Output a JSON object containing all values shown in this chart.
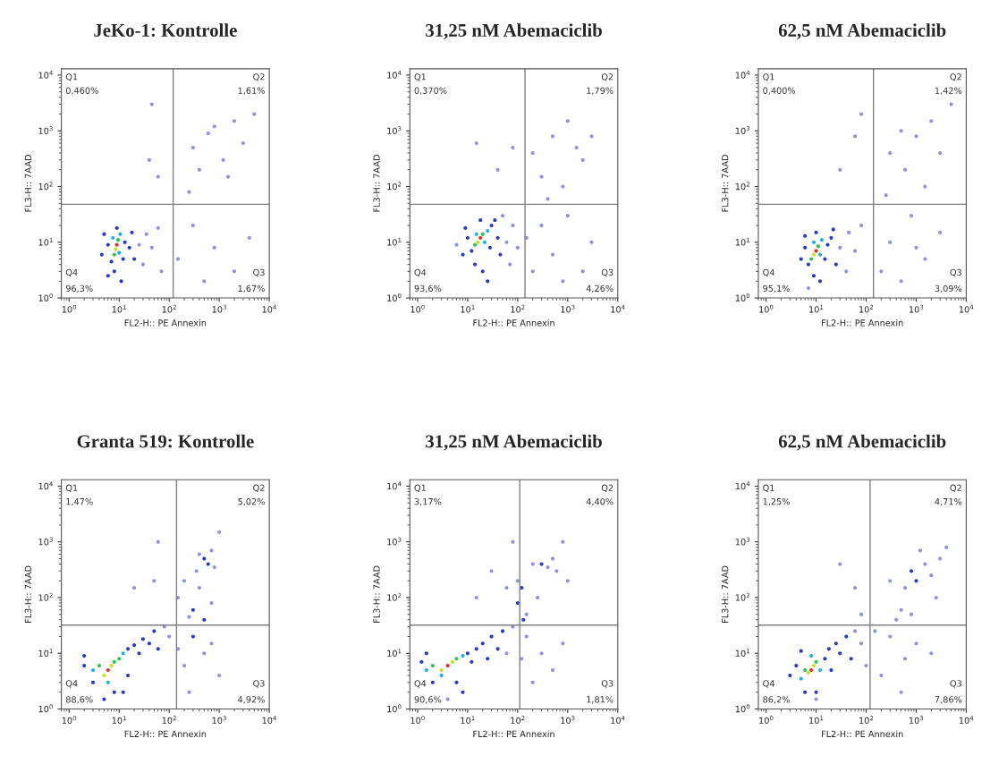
{
  "chart_data": [
    {
      "type": "scatter",
      "title": "JeKo-1: Kontrolle",
      "xlabel": "FL2-H:: PE Annexin",
      "ylabel": "FL3-H:: 7AAD",
      "marker": "circle",
      "grid": false,
      "log": "xy",
      "xlim": [
        0.7,
        10000
      ],
      "ylim": [
        1,
        13000
      ],
      "xticks": [
        {
          "value": 1,
          "label": "10$^{0}$"
        },
        {
          "value": 10,
          "label": "10$^{1}$"
        },
        {
          "value": 100,
          "label": "10$^{2}$"
        },
        {
          "value": 1000,
          "label": "10$^{3}$"
        },
        {
          "value": 10000,
          "label": "10$^{4}$"
        }
      ],
      "yticks": [
        {
          "value": 1,
          "label": "10$^{0}$"
        },
        {
          "value": 10,
          "label": "10$^{1}$"
        },
        {
          "value": 100,
          "label": "10$^{2}$"
        },
        {
          "value": 1000,
          "label": "10$^{3}$"
        },
        {
          "value": 10000,
          "label": "10$^{4}$"
        }
      ],
      "ref_lines": [
        {
          "axis": "x",
          "value": 120,
          "color": "#808080"
        },
        {
          "axis": "y",
          "value": 48,
          "color": "#808080"
        }
      ],
      "annotations": [
        "Q1",
        "0,460%",
        "Q2",
        "1,61%",
        "Q3",
        "1,67%",
        "Q4",
        "96,3%"
      ],
      "x": [
        9,
        8.5,
        9.5,
        8,
        10,
        7.5,
        10.5,
        7,
        12,
        6,
        13,
        9,
        8,
        6,
        16,
        5,
        18,
        20,
        25,
        30,
        35,
        45,
        11,
        4.5,
        60,
        70,
        300,
        600,
        1200,
        2000,
        400,
        800,
        3000,
        250,
        5000,
        1500,
        40,
        60,
        45,
        300,
        800,
        2000,
        150,
        500,
        4000
      ],
      "values": [
        9,
        7.5,
        11,
        6,
        6.5,
        12,
        14,
        4.5,
        5,
        9,
        10,
        18,
        3,
        2.5,
        8,
        14,
        15,
        5,
        9,
        4,
        14,
        8,
        2,
        6,
        18,
        3,
        500,
        900,
        300,
        1500,
        200,
        1200,
        600,
        80,
        2000,
        150,
        300,
        150,
        3000,
        20,
        8,
        3,
        5,
        2,
        12
      ],
      "colors": [
        "#e8301c",
        "#c8e01c",
        "#28c850",
        "#28c850",
        "#20b0e8",
        "#20b0e8",
        "#20b0e8",
        "#2838d0",
        "#2838d0",
        "#2838d0",
        "#2838d0",
        "#2838d0",
        "#2838d0",
        "#2838d0",
        "#2838d0",
        "#2838d0",
        "#2838d0",
        "#2838d0",
        "#9090e8",
        "#9090e8",
        "#9090e8",
        "#9090e8",
        "#2838d0",
        "#2838d0",
        "#9090e8",
        "#9090e8",
        "#9090e8",
        "#9090e8",
        "#9090e8",
        "#9090e8",
        "#9090e8",
        "#9090e8",
        "#9090e8",
        "#9090e8",
        "#9090e8",
        "#9090e8",
        "#9090e8",
        "#9090e8",
        "#9090e8",
        "#9090e8",
        "#9090e8",
        "#9090e8",
        "#9090e8",
        "#9090e8",
        "#9090e8"
      ]
    },
    {
      "type": "scatter",
      "title": "31,25 nM Abemaciclib",
      "xlabel": "FL2-H:: PE Annexin",
      "ylabel": "FL3-H:: 7AAD",
      "marker": "circle",
      "grid": false,
      "log": "xy",
      "xlim": [
        0.7,
        10000
      ],
      "ylim": [
        1,
        13000
      ],
      "xticks": [
        {
          "value": 1,
          "label": "10$^{0}$"
        },
        {
          "value": 10,
          "label": "10$^{1}$"
        },
        {
          "value": 100,
          "label": "10$^{2}$"
        },
        {
          "value": 1000,
          "label": "10$^{3}$"
        },
        {
          "value": 10000,
          "label": "10$^{4}$"
        }
      ],
      "yticks": [
        {
          "value": 1,
          "label": "10$^{0}$"
        },
        {
          "value": 10,
          "label": "10$^{1}$"
        },
        {
          "value": 100,
          "label": "10$^{2}$"
        },
        {
          "value": 1000,
          "label": "10$^{3}$"
        },
        {
          "value": 10000,
          "label": "10$^{4}$"
        }
      ],
      "ref_lines": [
        {
          "axis": "x",
          "value": 140,
          "color": "#808080"
        },
        {
          "axis": "y",
          "value": 48,
          "color": "#808080"
        }
      ],
      "annotations": [
        "Q1",
        "0,370%",
        "Q2",
        "1,79%",
        "Q3",
        "4,26%",
        "Q4",
        "93,6%"
      ],
      "x": [
        18,
        16,
        20,
        14,
        22,
        15,
        25,
        12,
        28,
        10,
        30,
        18,
        14,
        20,
        40,
        9,
        35,
        45,
        60,
        70,
        80,
        8,
        25,
        100,
        50,
        6,
        200,
        300,
        500,
        1000,
        2000,
        800,
        3000,
        1500,
        400,
        40,
        15,
        80,
        300,
        500,
        1000,
        2000,
        200,
        3000,
        800,
        150
      ],
      "values": [
        12,
        10,
        14,
        9,
        10,
        14,
        16,
        7,
        8,
        12,
        20,
        25,
        4,
        3,
        12,
        18,
        25,
        6,
        10,
        4,
        20,
        6,
        2,
        8,
        30,
        9,
        400,
        150,
        800,
        1500,
        300,
        100,
        800,
        500,
        60,
        200,
        600,
        500,
        20,
        6,
        30,
        3,
        3,
        10,
        2,
        12
      ],
      "colors": [
        "#e8301c",
        "#c8e01c",
        "#28c850",
        "#28c850",
        "#20b0e8",
        "#20b0e8",
        "#20b0e8",
        "#2838d0",
        "#2838d0",
        "#2838d0",
        "#2838d0",
        "#2838d0",
        "#2838d0",
        "#2838d0",
        "#2838d0",
        "#2838d0",
        "#2838d0",
        "#2838d0",
        "#9090e8",
        "#9090e8",
        "#9090e8",
        "#2838d0",
        "#2838d0",
        "#9090e8",
        "#9090e8",
        "#9090e8",
        "#9090e8",
        "#9090e8",
        "#9090e8",
        "#9090e8",
        "#9090e8",
        "#9090e8",
        "#9090e8",
        "#9090e8",
        "#9090e8",
        "#9090e8",
        "#9090e8",
        "#9090e8",
        "#9090e8",
        "#9090e8",
        "#9090e8",
        "#9090e8",
        "#9090e8",
        "#9090e8",
        "#9090e8",
        "#9090e8"
      ]
    },
    {
      "type": "scatter",
      "title": "62,5 nM Abemaciclib",
      "xlabel": "FL2-H:: PE Annexin",
      "ylabel": "FL3-H:: 7AAD",
      "marker": "circle",
      "grid": false,
      "log": "xy",
      "xlim": [
        0.7,
        10000
      ],
      "ylim": [
        1,
        13000
      ],
      "xticks": [
        {
          "value": 1,
          "label": "10$^{0}$"
        },
        {
          "value": 10,
          "label": "10$^{1}$"
        },
        {
          "value": 100,
          "label": "10$^{2}$"
        },
        {
          "value": 1000,
          "label": "10$^{3}$"
        },
        {
          "value": 10000,
          "label": "10$^{4}$"
        }
      ],
      "yticks": [
        {
          "value": 1,
          "label": "10$^{0}$"
        },
        {
          "value": 10,
          "label": "10$^{1}$"
        },
        {
          "value": 100,
          "label": "10$^{2}$"
        },
        {
          "value": 1000,
          "label": "10$^{3}$"
        },
        {
          "value": 10000,
          "label": "10$^{4}$"
        }
      ],
      "ref_lines": [
        {
          "axis": "x",
          "value": 140,
          "color": "#808080"
        },
        {
          "axis": "y",
          "value": 48,
          "color": "#808080"
        }
      ],
      "annotations": [
        "Q1",
        "0,400%",
        "Q2",
        "1,42%",
        "Q3",
        "3,09%",
        "Q4",
        "95,1%"
      ],
      "x": [
        10,
        9,
        11,
        8,
        12,
        9,
        13,
        7,
        15,
        6,
        17,
        10,
        9,
        12,
        20,
        6,
        22,
        25,
        30,
        40,
        45,
        60,
        5,
        80,
        7,
        300,
        600,
        1000,
        2000,
        3000,
        500,
        1500,
        5000,
        250,
        60,
        30,
        80,
        300,
        800,
        1500,
        200,
        3000,
        500,
        1000
      ],
      "values": [
        7,
        6,
        8.5,
        5,
        6,
        10,
        11,
        4,
        5,
        8,
        9,
        15,
        2.5,
        2,
        12,
        13,
        17,
        4,
        8,
        3,
        15,
        7,
        5,
        20,
        1.5,
        400,
        200,
        800,
        1500,
        400,
        1000,
        100,
        3000,
        70,
        800,
        200,
        2000,
        10,
        30,
        5,
        3,
        15,
        2,
        8
      ],
      "colors": [
        "#e8301c",
        "#c8e01c",
        "#28c850",
        "#28c850",
        "#20b0e8",
        "#20b0e8",
        "#20b0e8",
        "#2838d0",
        "#2838d0",
        "#2838d0",
        "#2838d0",
        "#2838d0",
        "#2838d0",
        "#2838d0",
        "#2838d0",
        "#2838d0",
        "#2838d0",
        "#2838d0",
        "#9090e8",
        "#9090e8",
        "#9090e8",
        "#9090e8",
        "#2838d0",
        "#9090e8",
        "#9090e8",
        "#9090e8",
        "#9090e8",
        "#9090e8",
        "#9090e8",
        "#9090e8",
        "#9090e8",
        "#9090e8",
        "#9090e8",
        "#9090e8",
        "#9090e8",
        "#9090e8",
        "#9090e8",
        "#9090e8",
        "#9090e8",
        "#9090e8",
        "#9090e8",
        "#9090e8",
        "#9090e8",
        "#9090e8"
      ]
    },
    {
      "type": "scatter",
      "title": "Granta 519: Kontrolle",
      "xlabel": "FL2-H:: PE Annexin",
      "ylabel": "FL3-H:: 7AAD",
      "marker": "circle",
      "grid": false,
      "log": "xy",
      "xlim": [
        0.7,
        10000
      ],
      "ylim": [
        1,
        13000
      ],
      "xticks": [
        {
          "value": 1,
          "label": "10$^{0}$"
        },
        {
          "value": 10,
          "label": "10$^{1}$"
        },
        {
          "value": 100,
          "label": "10$^{2}$"
        },
        {
          "value": 1000,
          "label": "10$^{3}$"
        },
        {
          "value": 10000,
          "label": "10$^{4}$"
        }
      ],
      "yticks": [
        {
          "value": 1,
          "label": "10$^{0}$"
        },
        {
          "value": 10,
          "label": "10$^{1}$"
        },
        {
          "value": 100,
          "label": "10$^{2}$"
        },
        {
          "value": 1000,
          "label": "10$^{3}$"
        },
        {
          "value": 10000,
          "label": "10$^{4}$"
        }
      ],
      "ref_lines": [
        {
          "axis": "x",
          "value": 140,
          "color": "#808080"
        },
        {
          "axis": "y",
          "value": 32,
          "color": "#808080"
        }
      ],
      "annotations": [
        "Q1",
        "1,47%",
        "Q2",
        "5,02%",
        "Q3",
        "4,92%",
        "Q4",
        "88,6%"
      ],
      "x": [
        6,
        7,
        5,
        8,
        4,
        10,
        3,
        12,
        6,
        15,
        2,
        3,
        20,
        8,
        25,
        2,
        30,
        40,
        50,
        60,
        15,
        80,
        100,
        5,
        12,
        500,
        600,
        400,
        700,
        350,
        800,
        200,
        150,
        300,
        500,
        250,
        700,
        1000,
        400,
        50,
        20,
        60,
        300,
        500,
        200,
        700,
        1000,
        250,
        150
      ],
      "values": [
        5,
        6,
        4,
        7,
        6,
        8,
        5,
        10,
        3,
        12,
        6,
        3,
        14,
        2,
        10,
        9,
        18,
        15,
        25,
        12,
        4,
        30,
        20,
        1.5,
        2,
        500,
        400,
        600,
        700,
        300,
        350,
        200,
        100,
        60,
        40,
        45,
        80,
        1500,
        150,
        200,
        150,
        1000,
        20,
        10,
        6,
        15,
        4,
        2,
        12
      ],
      "colors": [
        "#e8301c",
        "#c8e01c",
        "#c8e01c",
        "#28c850",
        "#28c850",
        "#28c850",
        "#20b0e8",
        "#20b0e8",
        "#20b0e8",
        "#2838d0",
        "#2838d0",
        "#2838d0",
        "#2838d0",
        "#2838d0",
        "#2838d0",
        "#2838d0",
        "#2838d0",
        "#2838d0",
        "#2838d0",
        "#2838d0",
        "#2838d0",
        "#9090e8",
        "#9090e8",
        "#2838d0",
        "#2838d0",
        "#2838d0",
        "#2838d0",
        "#9090e8",
        "#9090e8",
        "#9090e8",
        "#9090e8",
        "#9090e8",
        "#9090e8",
        "#2838d0",
        "#2838d0",
        "#9090e8",
        "#9090e8",
        "#9090e8",
        "#9090e8",
        "#9090e8",
        "#9090e8",
        "#9090e8",
        "#2838d0",
        "#9090e8",
        "#9090e8",
        "#9090e8",
        "#9090e8",
        "#9090e8",
        "#9090e8"
      ]
    },
    {
      "type": "scatter",
      "title": "31,25 nM Abemaciclib",
      "xlabel": "FL2-H:: PE Annexin",
      "ylabel": "FL3-H:: 7AAD",
      "marker": "circle",
      "grid": false,
      "log": "xy",
      "xlim": [
        0.7,
        10000
      ],
      "ylim": [
        1,
        13000
      ],
      "xticks": [
        {
          "value": 1,
          "label": "10$^{0}$"
        },
        {
          "value": 10,
          "label": "10$^{1}$"
        },
        {
          "value": 100,
          "label": "10$^{2}$"
        },
        {
          "value": 1000,
          "label": "10$^{3}$"
        },
        {
          "value": 10000,
          "label": "10$^{4}$"
        }
      ],
      "yticks": [
        {
          "value": 1,
          "label": "10$^{0}$"
        },
        {
          "value": 10,
          "label": "10$^{1}$"
        },
        {
          "value": 100,
          "label": "10$^{2}$"
        },
        {
          "value": 1000,
          "label": "10$^{3}$"
        },
        {
          "value": 10000,
          "label": "10$^{4}$"
        }
      ],
      "ref_lines": [
        {
          "axis": "x",
          "value": 110,
          "color": "#808080"
        },
        {
          "axis": "y",
          "value": 32,
          "color": "#808080"
        }
      ],
      "annotations": [
        "Q1",
        "3,17%",
        "Q2",
        "4,40%",
        "Q3",
        "1,81%",
        "Q4",
        "90,6%"
      ],
      "x": [
        4,
        3,
        5,
        2,
        6,
        8,
        3,
        1.5,
        10,
        12,
        1.2,
        2,
        15,
        6,
        20,
        25,
        30,
        40,
        50,
        8,
        1.5,
        60,
        80,
        4,
        100,
        120,
        300,
        400,
        500,
        200,
        600,
        100,
        150,
        130,
        800,
        1000,
        250,
        60,
        30,
        80,
        15,
        150,
        300,
        500,
        200,
        800,
        120
      ],
      "values": [
        6,
        5,
        7,
        6,
        8,
        9,
        4,
        5,
        10,
        7,
        7,
        3,
        12,
        3,
        15,
        8,
        20,
        12,
        25,
        2,
        10,
        10,
        30,
        1.5,
        80,
        150,
        400,
        350,
        500,
        400,
        300,
        200,
        50,
        40,
        1000,
        200,
        100,
        150,
        300,
        1000,
        100,
        20,
        10,
        5,
        3,
        15,
        8
      ],
      "colors": [
        "#e8301c",
        "#c8e01c",
        "#c8e01c",
        "#28c850",
        "#28c850",
        "#20b0e8",
        "#20b0e8",
        "#20b0e8",
        "#2838d0",
        "#2838d0",
        "#2838d0",
        "#2838d0",
        "#2838d0",
        "#2838d0",
        "#2838d0",
        "#2838d0",
        "#2838d0",
        "#2838d0",
        "#2838d0",
        "#2838d0",
        "#2838d0",
        "#9090e8",
        "#9090e8",
        "#9090e8",
        "#2838d0",
        "#2838d0",
        "#2838d0",
        "#9090e8",
        "#9090e8",
        "#9090e8",
        "#9090e8",
        "#9090e8",
        "#9090e8",
        "#2838d0",
        "#9090e8",
        "#9090e8",
        "#9090e8",
        "#9090e8",
        "#9090e8",
        "#9090e8",
        "#9090e8",
        "#9090e8",
        "#9090e8",
        "#9090e8",
        "#9090e8",
        "#9090e8",
        "#9090e8"
      ]
    },
    {
      "type": "scatter",
      "title": "62,5 nM Abemaciclib",
      "xlabel": "FL2-H:: PE Annexin",
      "ylabel": "FL3-H:: 7AAD",
      "marker": "circle",
      "grid": false,
      "log": "xy",
      "xlim": [
        0.7,
        10000
      ],
      "ylim": [
        1,
        13000
      ],
      "xticks": [
        {
          "value": 1,
          "label": "10$^{0}$"
        },
        {
          "value": 10,
          "label": "10$^{1}$"
        },
        {
          "value": 100,
          "label": "10$^{2}$"
        },
        {
          "value": 1000,
          "label": "10$^{3}$"
        },
        {
          "value": 10000,
          "label": "10$^{4}$"
        }
      ],
      "yticks": [
        {
          "value": 1,
          "label": "10$^{0}$"
        },
        {
          "value": 10,
          "label": "10$^{1}$"
        },
        {
          "value": 100,
          "label": "10$^{2}$"
        },
        {
          "value": 1000,
          "label": "10$^{3}$"
        },
        {
          "value": 10000,
          "label": "10$^{4}$"
        }
      ],
      "ref_lines": [
        {
          "axis": "x",
          "value": 120,
          "color": "#808080"
        },
        {
          "axis": "y",
          "value": 32,
          "color": "#808080"
        }
      ],
      "annotations": [
        "Q1",
        "1,25%",
        "Q2",
        "4,71%",
        "Q3",
        "7,86%",
        "Q4",
        "86,2%"
      ],
      "x": [
        8,
        7,
        9,
        6,
        10,
        12,
        5,
        8,
        15,
        4,
        6,
        18,
        3,
        20,
        25,
        10,
        30,
        40,
        50,
        60,
        5,
        80,
        100,
        10,
        1000,
        800,
        1500,
        2000,
        600,
        3000,
        1200,
        500,
        400,
        800,
        2500,
        300,
        4000,
        60,
        30,
        80,
        300,
        600,
        1000,
        200,
        2000,
        500,
        150
      ],
      "values": [
        5,
        4.5,
        6,
        5,
        7,
        5,
        3.5,
        9,
        8,
        6,
        2,
        12,
        4,
        5,
        15,
        2,
        10,
        20,
        8,
        25,
        11,
        15,
        6,
        1.5,
        200,
        300,
        400,
        250,
        150,
        500,
        700,
        60,
        40,
        50,
        100,
        200,
        800,
        150,
        400,
        50,
        20,
        8,
        15,
        4,
        10,
        2,
        25
      ],
      "colors": [
        "#e8301c",
        "#c8e01c",
        "#c8e01c",
        "#28c850",
        "#28c850",
        "#20b0e8",
        "#20b0e8",
        "#20b0e8",
        "#2838d0",
        "#2838d0",
        "#2838d0",
        "#2838d0",
        "#2838d0",
        "#2838d0",
        "#2838d0",
        "#2838d0",
        "#2838d0",
        "#2838d0",
        "#2838d0",
        "#9090e8",
        "#2838d0",
        "#9090e8",
        "#9090e8",
        "#9090e8",
        "#2838d0",
        "#2838d0",
        "#9090e8",
        "#9090e8",
        "#9090e8",
        "#9090e8",
        "#9090e8",
        "#9090e8",
        "#9090e8",
        "#9090e8",
        "#9090e8",
        "#9090e8",
        "#9090e8",
        "#9090e8",
        "#9090e8",
        "#9090e8",
        "#9090e8",
        "#9090e8",
        "#9090e8",
        "#9090e8",
        "#9090e8",
        "#9090e8",
        "#9090e8"
      ]
    }
  ]
}
